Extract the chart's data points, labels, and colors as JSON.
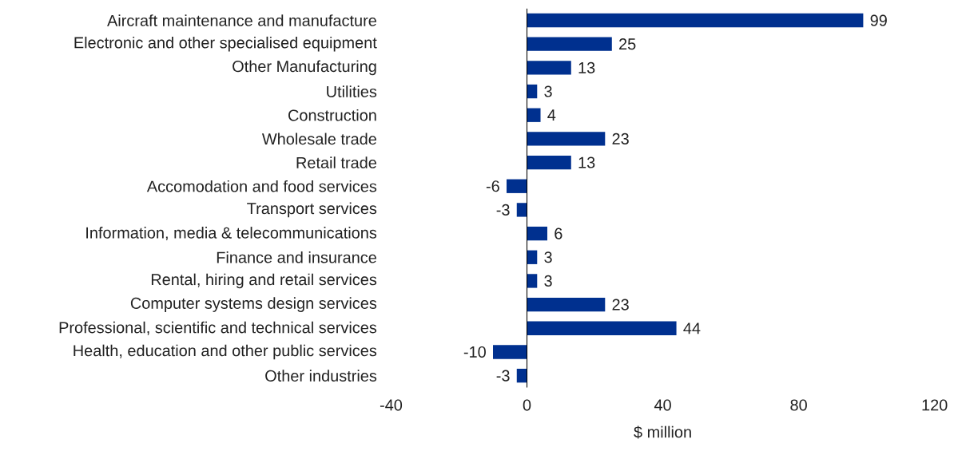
{
  "chart_data": {
    "type": "bar",
    "orientation": "horizontal",
    "xlabel": "$ million",
    "categories": [
      "Aircraft maintenance and manufacture",
      "Electronic and other specialised equipment",
      "Other Manufacturing",
      "Utilities",
      "Construction",
      "Wholesale trade",
      "Retail trade",
      "Accomodation and food services",
      "Transport services",
      "Information, media & telecommunications",
      "Finance and insurance",
      "Rental, hiring and retail services",
      "Computer systems design services",
      "Professional, scientific and technical services",
      "Health, education and other public services",
      "Other industries"
    ],
    "values": [
      99,
      25,
      13,
      3,
      4,
      23,
      13,
      -6,
      -3,
      6,
      3,
      3,
      23,
      44,
      -10,
      -3
    ],
    "color": "#00308f",
    "xlim": [
      -40,
      120
    ],
    "xticks": [
      -40,
      0,
      40,
      80,
      120
    ],
    "data_labels": true
  }
}
